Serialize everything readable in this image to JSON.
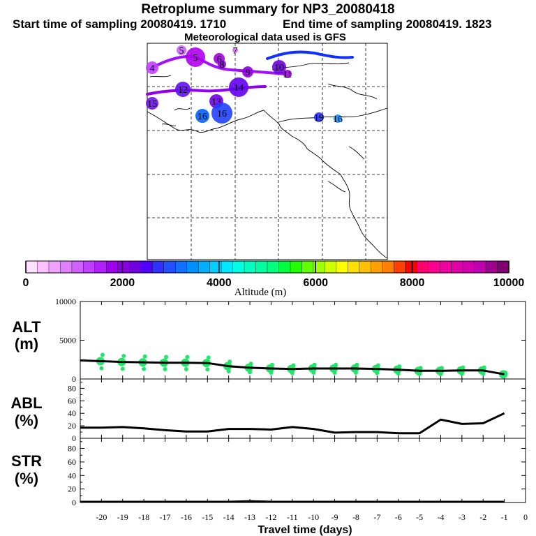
{
  "header": {
    "title": "Retroplume summary for NP3_20080418",
    "start": "Start time of sampling 20080419.  1710",
    "end": "End time of sampling 20080419.  1823",
    "met": "Meteorological data used is GFS"
  },
  "map": {
    "markers": [
      {
        "label": "4",
        "color": "#c040ff"
      },
      {
        "label": "5",
        "color": "#d060ff"
      },
      {
        "label": "5",
        "color": "#b000f0"
      },
      {
        "label": "6",
        "color": "#a000e0"
      },
      {
        "label": "7",
        "color": "#e070ff"
      },
      {
        "label": "8",
        "color": "#8a00e0"
      },
      {
        "label": "9",
        "color": "#9000e0"
      },
      {
        "label": "10",
        "color": "#7000e0"
      },
      {
        "label": "11",
        "color": "#a000e0"
      },
      {
        "label": "12",
        "color": "#6010f0"
      },
      {
        "label": "13",
        "color": "#7000e8"
      },
      {
        "label": "14",
        "color": "#6000f0"
      },
      {
        "label": "15",
        "color": "#7010ee"
      },
      {
        "label": "16",
        "color": "#0060ff"
      },
      {
        "label": "16",
        "color": "#2040ff"
      },
      {
        "label": "19",
        "color": "#2a30ff"
      },
      {
        "label": "16",
        "color": "#1e90ff"
      }
    ]
  },
  "colorbar": {
    "title": "Altitude (m)",
    "ticks": [
      "0",
      "2000",
      "4000",
      "6000",
      "8000",
      "10000"
    ],
    "colors": [
      "#ffe0ff",
      "#ffc0ff",
      "#f0a0ff",
      "#e080ff",
      "#d060ff",
      "#c040ff",
      "#b020ff",
      "#a000f0",
      "#8a00e0",
      "#7000e0",
      "#5000ff",
      "#3030ff",
      "#2050ff",
      "#1070ff",
      "#0090ff",
      "#00b0ff",
      "#00d0ff",
      "#00e8ff",
      "#00ffe0",
      "#00ffc0",
      "#00ffa0",
      "#00ff80",
      "#00ff40",
      "#20ff00",
      "#60ff00",
      "#a0ff00",
      "#d0ff00",
      "#ffff00",
      "#ffe000",
      "#ffc000",
      "#ffa000",
      "#ff8000",
      "#ff4000",
      "#ff0000",
      "#ff0070",
      "#ff0090",
      "#f000a0",
      "#e000a8",
      "#d000b0",
      "#c000b0",
      "#a00090",
      "#800070"
    ]
  },
  "panels": {
    "alt": {
      "label1": "ALT",
      "label2": "(m)"
    },
    "abl": {
      "label1": "ABL",
      "label2": "(%)"
    },
    "str": {
      "label1": "STR",
      "label2": "(%)"
    }
  },
  "chart_data": [
    {
      "type": "line",
      "title": "ALT (m)",
      "xlabel": "Travel time (days)",
      "ylabel": "ALT (m)",
      "xlim": [
        -21,
        0
      ],
      "ylim": [
        0,
        10000
      ],
      "yticks": [
        "0",
        "5000",
        "10000"
      ],
      "x": [
        -21,
        -20,
        -19,
        -18,
        -17,
        -16,
        -15,
        -14,
        -13,
        -12,
        -11,
        -10,
        -9,
        -8,
        -7,
        -6,
        -5,
        -4,
        -3,
        -2,
        -1
      ],
      "values": [
        2400,
        2300,
        2200,
        2150,
        2100,
        2100,
        2050,
        1650,
        1450,
        1350,
        1300,
        1350,
        1350,
        1350,
        1300,
        1200,
        1050,
        1050,
        1100,
        1100,
        600
      ]
    },
    {
      "type": "line",
      "title": "ABL (%)",
      "ylabel": "ABL (%)",
      "xlim": [
        -21,
        0
      ],
      "ylim": [
        0,
        95
      ],
      "yticks": [
        "0",
        "20",
        "40",
        "60",
        "80"
      ],
      "x": [
        -21,
        -20,
        -19,
        -18,
        -17,
        -16,
        -15,
        -14,
        -13,
        -12,
        -11,
        -10,
        -9,
        -8,
        -7,
        -6,
        -5,
        -4,
        -3,
        -2,
        -1
      ],
      "values": [
        17,
        17,
        18,
        16,
        13,
        11,
        11,
        15,
        15,
        14,
        18,
        15,
        9,
        10,
        10,
        8,
        8,
        30,
        23,
        24,
        40
      ]
    },
    {
      "type": "line",
      "title": "STR (%)",
      "ylabel": "STR (%)",
      "xlim": [
        -21,
        0
      ],
      "ylim": [
        0,
        95
      ],
      "yticks": [
        "0",
        "20",
        "40",
        "60",
        "80"
      ],
      "x": [
        -21,
        -20,
        -19,
        -18,
        -17,
        -16,
        -15,
        -14,
        -13,
        -12,
        -11,
        -10,
        -9,
        -8,
        -7,
        -6,
        -5,
        -4,
        -3,
        -2,
        -1
      ],
      "values": [
        1,
        1,
        1,
        1,
        1,
        1,
        1,
        1,
        2,
        1,
        1,
        1,
        1,
        1,
        1,
        1,
        1,
        1,
        1,
        1,
        1
      ]
    }
  ],
  "xaxis": {
    "title": "Travel time (days)",
    "tick_labels": [
      "-20",
      "-19",
      "-18",
      "-17",
      "-16",
      "-15",
      "-14",
      "-13",
      "-12",
      "-11",
      "-10",
      "-9",
      "-8",
      "-7",
      "-6",
      "-5",
      "-4",
      "-3",
      "-2",
      "-1",
      "0"
    ]
  }
}
